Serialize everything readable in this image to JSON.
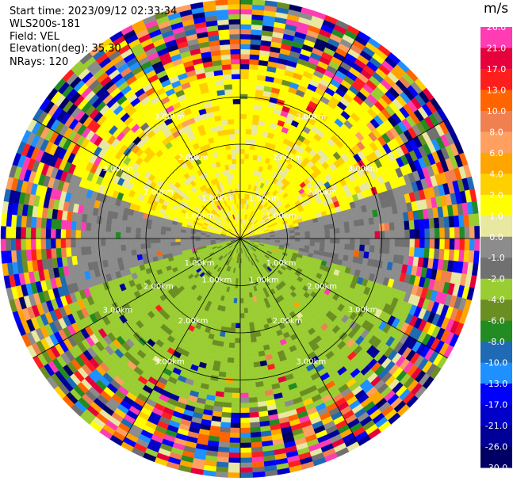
{
  "header": {
    "start_time": "Start time: 2023/09/12 02:33:34",
    "instrument": "WLS200s-181",
    "field": "Field: VEL",
    "elevation": "Elevation(deg): 35.30",
    "nrays": "NRays: 120"
  },
  "colorbar": {
    "unit": "m/s",
    "ticks": [
      "26.0",
      "21.0",
      "17.0",
      "13.0",
      "10.0",
      "8.0",
      "6.0",
      "4.0",
      "2.0",
      "1.0",
      "0.0",
      "-1.0",
      "-2.0",
      "-4.0",
      "-6.0",
      "-8.0",
      "-10.0",
      "-13.0",
      "-17.0",
      "-21.0",
      "-26.0",
      "-30.0"
    ],
    "colors": [
      "#ff3cb4",
      "#e6003c",
      "#ff1e1e",
      "#ff6400",
      "#f08050",
      "#ffa060",
      "#ffa500",
      "#ffd000",
      "#ffff00",
      "#e8e8a0",
      "#8c8c8c",
      "#707070",
      "#9acd32",
      "#6b8e23",
      "#228b22",
      "#1e6ab4",
      "#1e90ff",
      "#0000ff",
      "#0000c8",
      "#000096",
      "#000064"
    ]
  },
  "chart_data": {
    "type": "heatmap",
    "description_type": "ppi",
    "n_rays": 120,
    "range_rings_km": [
      1.0,
      2.0,
      3.0
    ],
    "ring_labels": [
      "1.00km",
      "2.00km",
      "3.00km"
    ],
    "value_range": [
      -30.0,
      26.0
    ],
    "grid": true
  }
}
